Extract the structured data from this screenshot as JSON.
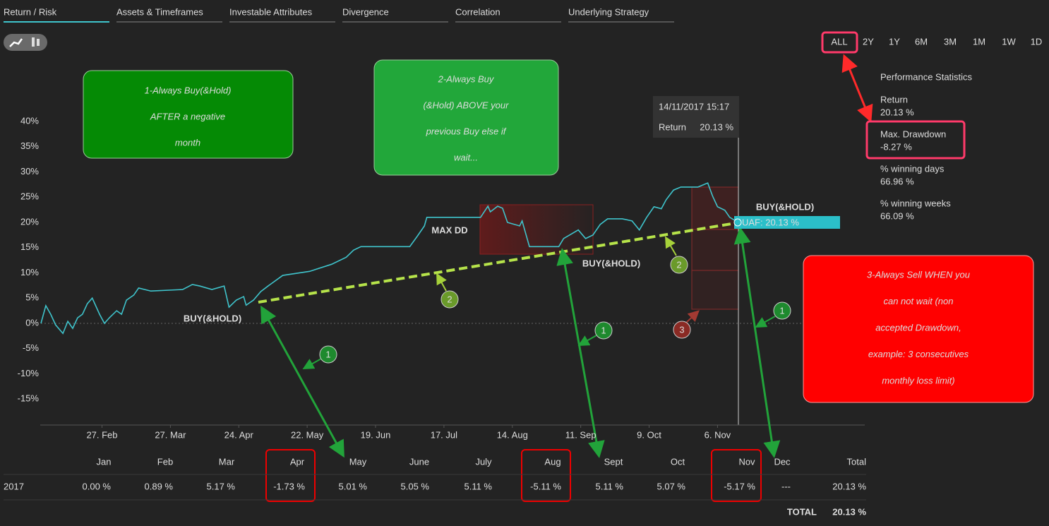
{
  "tabs": [
    "Return / Risk",
    "Assets & Timeframes",
    "Investable Attributes",
    "Divergence",
    "Correlation",
    "Underlying Strategy"
  ],
  "ranges": [
    "ALL",
    "2Y",
    "1Y",
    "6M",
    "3M",
    "1M",
    "1W",
    "1D"
  ],
  "chart_data": {
    "type": "line",
    "color": "#3fc4cc",
    "x": [
      33,
      35,
      37,
      39,
      42,
      44,
      46,
      48,
      50,
      52,
      54,
      57,
      59,
      61,
      64,
      66,
      68,
      71,
      73,
      78,
      91,
      95,
      98,
      103,
      108,
      110,
      113,
      116,
      117,
      120,
      123,
      126,
      132,
      143,
      152,
      158,
      161,
      164,
      184,
      187,
      190,
      191,
      213,
      216,
      217,
      220,
      222,
      224,
      229,
      230,
      233,
      245,
      247,
      253,
      256,
      259,
      262,
      265,
      271,
      275,
      278,
      281,
      284,
      287,
      289,
      292,
      295,
      302,
      306,
      308,
      310,
      313,
      315,
      318
    ],
    "values": [
      0,
      3.5,
      1.8,
      -0.3,
      -2,
      0.4,
      -1,
      1.1,
      1.8,
      3.9,
      5,
      1.8,
      0,
      1.1,
      2.5,
      1.8,
      4.6,
      5.6,
      7,
      6.4,
      6.7,
      7.7,
      7.4,
      6.7,
      7.4,
      3.2,
      4.6,
      5.3,
      3.6,
      4.6,
      6.3,
      7.4,
      9.5,
      10.3,
      11.7,
      13.1,
      14.5,
      15.2,
      15.2,
      17.2,
      19.3,
      21,
      21,
      23.2,
      22.1,
      23.2,
      22.8,
      20,
      19.3,
      20.3,
      15.2,
      15.2,
      16.8,
      18.5,
      16.8,
      17.5,
      19.6,
      20.7,
      20.7,
      20.3,
      18.5,
      21,
      23.1,
      22.7,
      24.5,
      26.4,
      27,
      27,
      27.8,
      25.2,
      23.1,
      22.4,
      21,
      20.13
    ],
    "xlim": [
      33,
      370
    ],
    "xticks": [
      {
        "value": 58,
        "label": "27. Feb"
      },
      {
        "value": 86,
        "label": "27. Mar"
      },
      {
        "value": 114,
        "label": "24. Apr"
      },
      {
        "value": 142,
        "label": "22. May"
      },
      {
        "value": 170,
        "label": "19. Jun"
      },
      {
        "value": 198,
        "label": "17. Jul"
      },
      {
        "value": 226,
        "label": "14. Aug"
      },
      {
        "value": 254,
        "label": "11. Sep"
      },
      {
        "value": 282,
        "label": "9. Oct"
      },
      {
        "value": 310,
        "label": "6. Nov"
      }
    ],
    "ylim": [
      -20,
      43
    ],
    "yticks": [
      {
        "value": 40,
        "label": "40%"
      },
      {
        "value": 35,
        "label": "35%"
      },
      {
        "value": 30,
        "label": "30%"
      },
      {
        "value": 25,
        "label": "25%"
      },
      {
        "value": 20,
        "label": "20%"
      },
      {
        "value": 15,
        "label": "15%"
      },
      {
        "value": 10,
        "label": "10%"
      },
      {
        "value": 5,
        "label": "5%"
      },
      {
        "value": 0,
        "label": "0%"
      },
      {
        "value": -5,
        "label": "-5%"
      },
      {
        "value": -10,
        "label": "-10%"
      },
      {
        "value": -15,
        "label": "-15%"
      }
    ],
    "tooltip": {
      "date": "14/11/2017 15:17",
      "label": "Return",
      "value": "20.13 %"
    },
    "end_label": "UAF: 20.13 %"
  },
  "stats": {
    "title": "Performance Statistics",
    "items": [
      {
        "label": "Return",
        "value": "20.13 %"
      },
      {
        "label": "Max. Drawdown",
        "value": "-8.27 %"
      },
      {
        "label": "% winning days",
        "value": "66.96 %"
      },
      {
        "label": "% winning weeks",
        "value": "66.09 %"
      }
    ]
  },
  "table": {
    "columns": [
      "Jan",
      "Feb",
      "Mar",
      "Apr",
      "May",
      "June",
      "July",
      "Aug",
      "Sept",
      "Oct",
      "Nov",
      "Dec",
      "Total"
    ],
    "row_label": "2017",
    "cells": [
      "0.00 %",
      "0.89 %",
      "5.17 %",
      "-1.73 %",
      "5.01 %",
      "5.05 %",
      "5.11 %",
      "-5.11 %",
      "5.11 %",
      "5.07 %",
      "-5.17 %",
      "---",
      "20.13 %"
    ],
    "total_label": "TOTAL",
    "total_value": "20.13 %"
  },
  "annotations": {
    "callouts": [
      {
        "lines": [
          "1-Always Buy(&Hold)",
          "AFTER a negative",
          "month"
        ]
      },
      {
        "lines": [
          "2-Always Buy",
          "(&Hold) ABOVE your",
          "previous Buy else if",
          "wait..."
        ]
      },
      {
        "lines": [
          "3-Always Sell WHEN you",
          "can not wait (non",
          "accepted Drawdown,",
          "example: 3 consecutives",
          "monthly loss limit)"
        ]
      }
    ],
    "buy_labels": [
      "BUY(&HOLD)",
      "BUY(&HOLD)",
      "BUY(&HOLD)"
    ],
    "max_dd": "MAX DD",
    "markers": [
      "1",
      "1",
      "1",
      "2",
      "2",
      "3"
    ]
  }
}
